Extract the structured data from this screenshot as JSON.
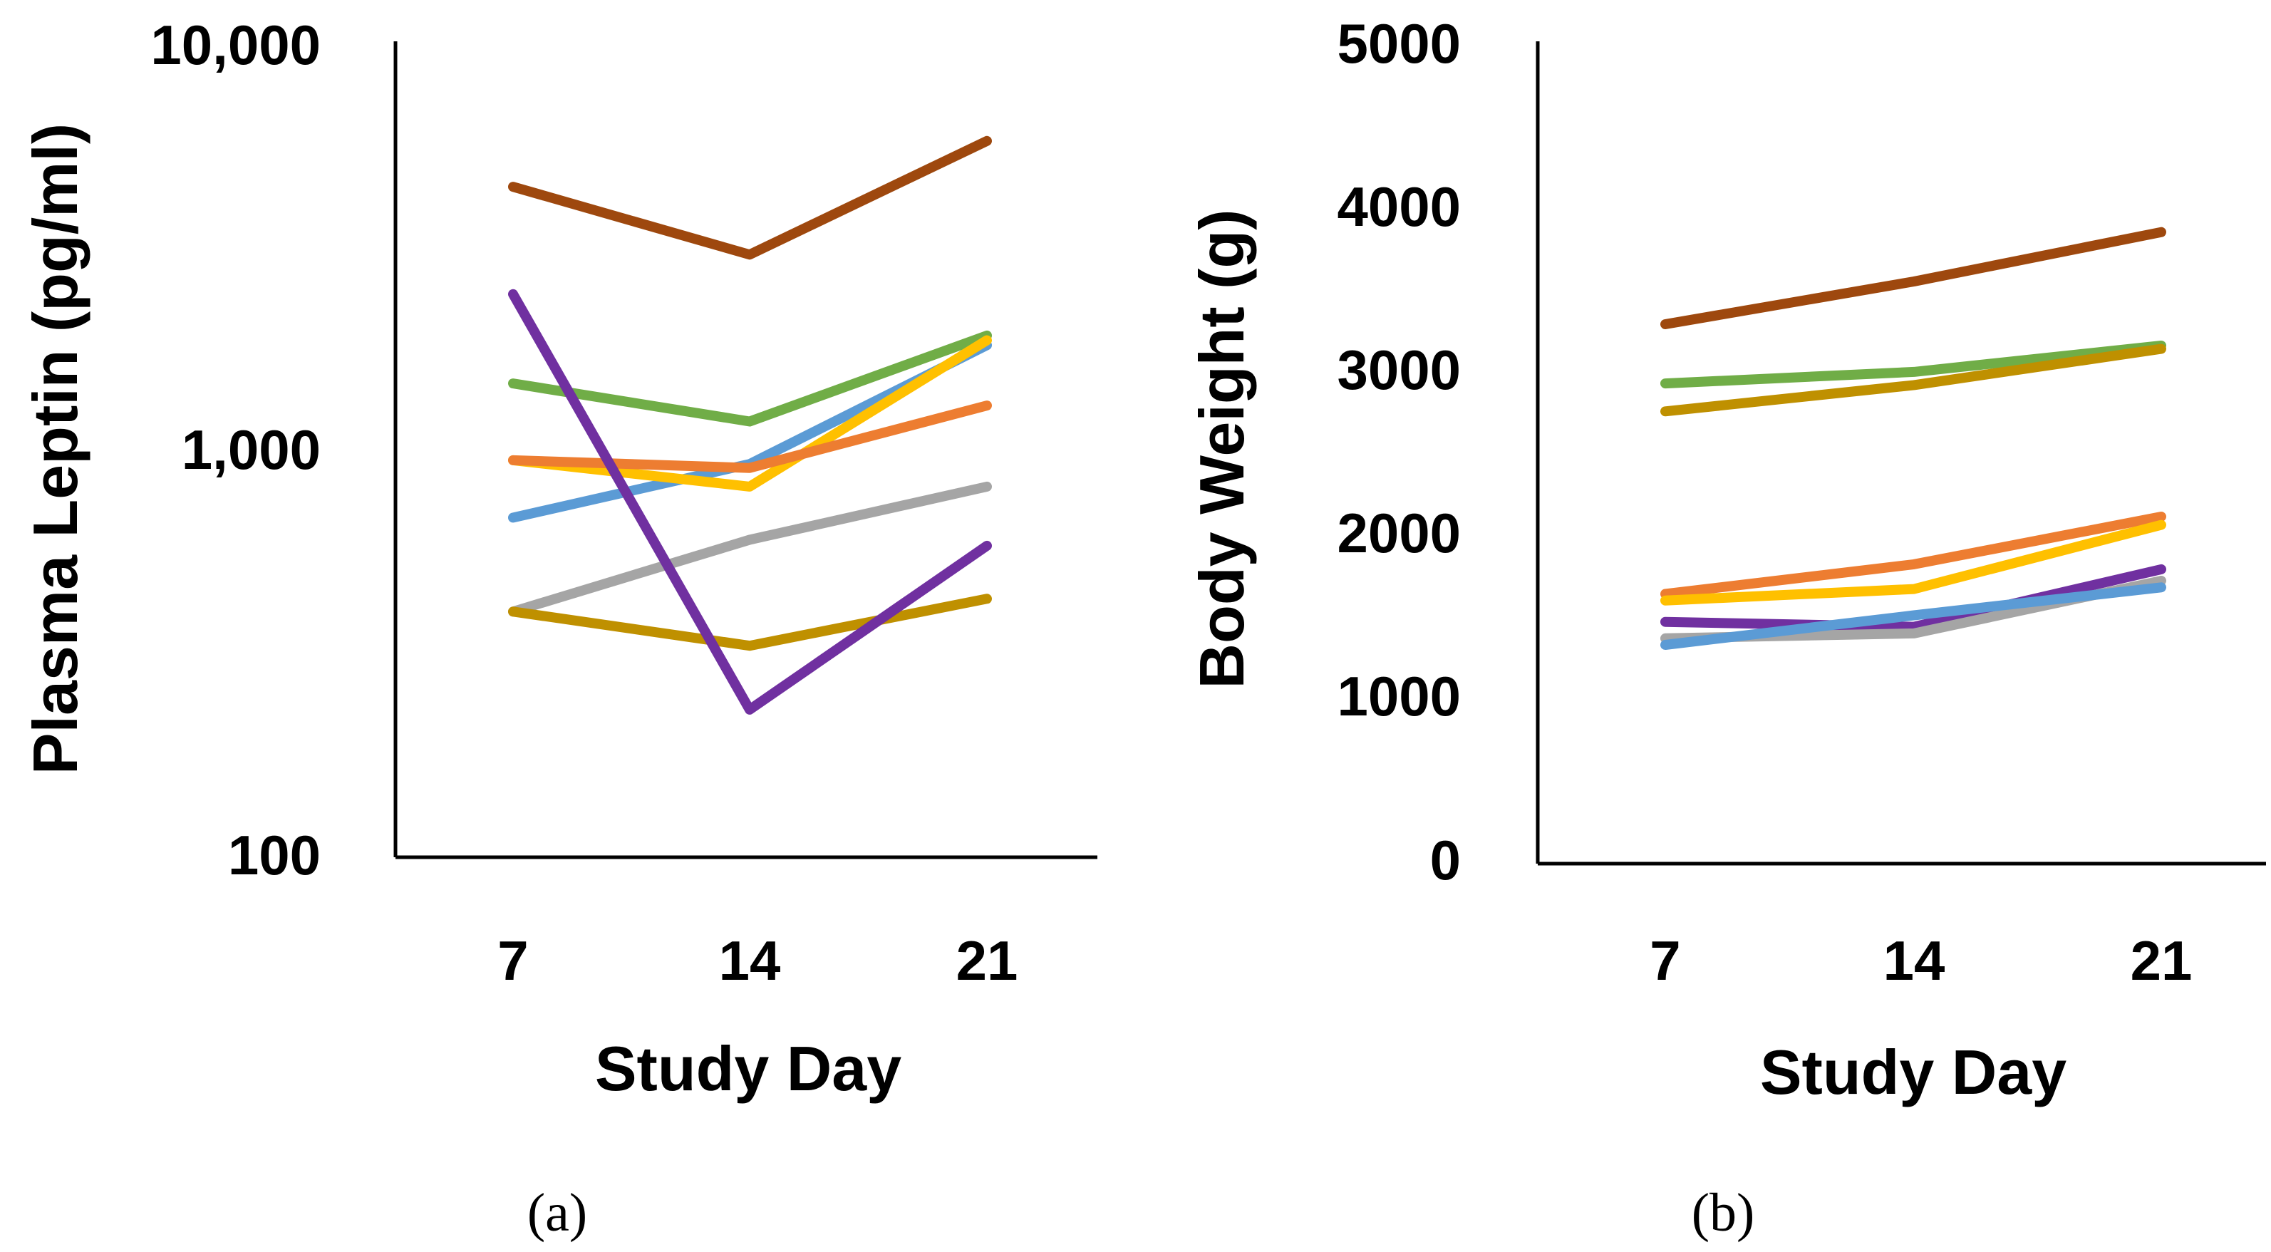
{
  "chart_data": [
    {
      "type": "line",
      "panel_label": "(a)",
      "xlabel": "Study Day",
      "ylabel": "Plasma Leptin (pg/ml)",
      "yscale": "log",
      "ylim": [
        100,
        10000
      ],
      "yticks": [
        100,
        1000,
        10000
      ],
      "yticklabels": [
        "100",
        "1,000",
        "10,000"
      ],
      "x": [
        "7",
        "14",
        "21"
      ],
      "grid": false,
      "legend": "none",
      "series": [
        {
          "color": "#9E480E",
          "values": [
            4400,
            3000,
            5700
          ]
        },
        {
          "color": "#70AD47",
          "values": [
            1450,
            1170,
            1900
          ]
        },
        {
          "color": "#5B9BD5",
          "values": [
            680,
            920,
            1800
          ]
        },
        {
          "color": "#FFC000",
          "values": [
            940,
            810,
            1850
          ]
        },
        {
          "color": "#ED7D31",
          "values": [
            940,
            900,
            1280
          ]
        },
        {
          "color": "#A5A5A5",
          "values": [
            400,
            600,
            810
          ]
        },
        {
          "color": "#BF9000",
          "values": [
            400,
            330,
            430
          ]
        },
        {
          "color": "#7030A0",
          "values": [
            2400,
            230,
            580
          ]
        }
      ]
    },
    {
      "type": "line",
      "panel_label": "(b)",
      "xlabel": "Study Day",
      "ylabel": "Body Weight (g)",
      "ylim": [
        0,
        5000
      ],
      "yticks": [
        0,
        1000,
        2000,
        3000,
        4000,
        5000
      ],
      "yticklabels": [
        "0",
        "1000",
        "2000",
        "3000",
        "4000",
        "5000"
      ],
      "x": [
        "7",
        "14",
        "21"
      ],
      "grid": false,
      "legend": "none",
      "series": [
        {
          "color": "#9E480E",
          "values": [
            3280,
            3540,
            3840
          ]
        },
        {
          "color": "#70AD47",
          "values": [
            2920,
            2990,
            3150
          ]
        },
        {
          "color": "#BF9000",
          "values": [
            2750,
            2910,
            3130
          ]
        },
        {
          "color": "#ED7D31",
          "values": [
            1640,
            1820,
            2110
          ]
        },
        {
          "color": "#FFC000",
          "values": [
            1600,
            1670,
            2060
          ]
        },
        {
          "color": "#7030A0",
          "values": [
            1470,
            1440,
            1790
          ]
        },
        {
          "color": "#A5A5A5",
          "values": [
            1370,
            1400,
            1720
          ]
        },
        {
          "color": "#5B9BD5",
          "values": [
            1330,
            1510,
            1680
          ]
        }
      ]
    }
  ]
}
